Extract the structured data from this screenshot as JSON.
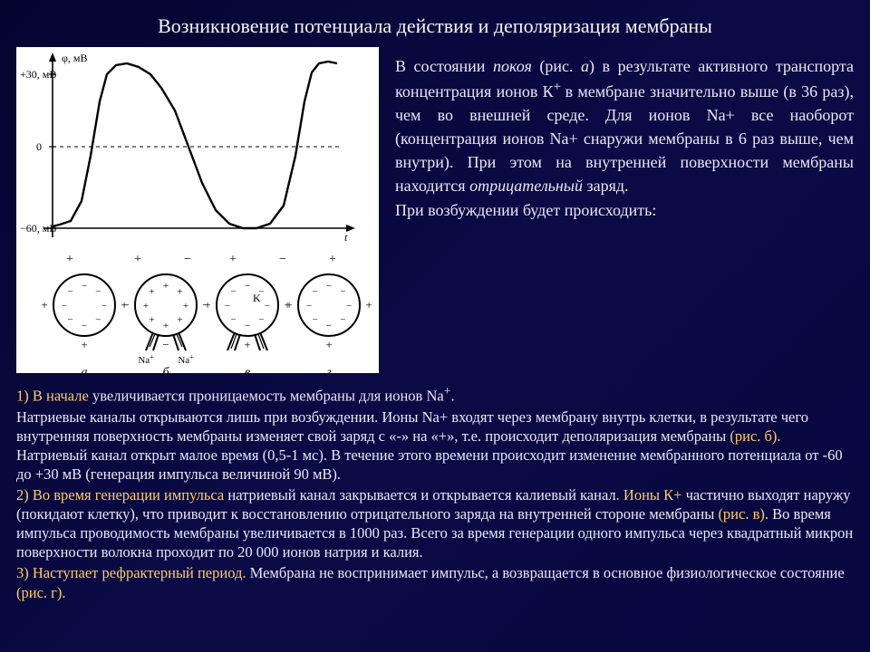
{
  "title": "Возникновение потенциала действия и деполяризация мембраны",
  "figure": {
    "chart": {
      "y_label_top": "+30, мВ",
      "y_label_mid": "0",
      "y_label_bot": "−60, мВ",
      "y_axis_title": "φ, мВ",
      "x_axis_label": "t",
      "background": "#ffffff",
      "stroke": "#000000",
      "line_width": 2,
      "curve": [
        [
          40,
          198
        ],
        [
          48,
          196
        ],
        [
          60,
          192
        ],
        [
          72,
          170
        ],
        [
          82,
          120
        ],
        [
          92,
          60
        ],
        [
          100,
          30
        ],
        [
          110,
          20
        ],
        [
          122,
          18
        ],
        [
          135,
          22
        ],
        [
          148,
          30
        ],
        [
          160,
          45
        ],
        [
          175,
          70
        ],
        [
          190,
          110
        ],
        [
          205,
          150
        ],
        [
          220,
          180
        ],
        [
          235,
          195
        ],
        [
          250,
          200
        ],
        [
          265,
          200
        ],
        [
          280,
          195
        ],
        [
          295,
          175
        ],
        [
          308,
          120
        ],
        [
          318,
          60
        ],
        [
          326,
          28
        ],
        [
          334,
          18
        ],
        [
          344,
          16
        ],
        [
          354,
          18
        ]
      ],
      "yticks": [
        30,
        0,
        -60
      ],
      "ylim": [
        -65,
        40
      ]
    },
    "membranes": {
      "labels": [
        "а",
        "б",
        "в",
        "г"
      ],
      "na_label": "Na",
      "k_label": "K",
      "circle_r": 34,
      "stroke": "#000000"
    }
  },
  "top_paragraph": {
    "p1a": "В состоянии ",
    "p1b_italic": "покоя",
    "p1c": " (рис.  ",
    "p1d_italic": "а",
    "p1e": ")  в результате активного транспорта концентрация ионов К",
    "p1f_sup": "+ ",
    "p1g": "в мембране значительно выше (в 36 раз), чем во внешней среде. Для ионов Na+  все наоборот (концентрация ионов Na+ снаружи мембраны в 6 раз выше, чем внутри). При этом на внутренней поверхности мембраны находится ",
    "p1h_italic": "отрицательный",
    "p1i": "  заряд."
  },
  "sub_heading": "При возбуждении будет происходить:",
  "body": {
    "s1_lead": "1) В начале ",
    "s1_a": "увеличивается проницаемость мембраны для ионов Na",
    "s1_sup": "+",
    "s1_b": ".",
    "s1_c": "Натриевые каналы открываются лишь при возбуждении. Ионы Na+ входят через мембрану внутрь клетки, в результате чего внутренняя поверхность мембраны изменяет свой заряд с «-» на «+», т.е. происходит деполяризация мембраны",
    "s1_d_orange": " (рис. б). ",
    "s1_e": "Натриевый канал открыт малое время (0,5-1 мс). В течение этого времени происходит изменение мембранного потенциала от -60 до +30 мВ (генерация импульса величиной 90 мВ).",
    "s2_lead": "2) Во время генерации импульса ",
    "s2_a": "натриевый канал закрывается и открывается калиевый канал",
    "s2_b_orange": ". Ионы К+ ",
    "s2_c": "частично выходят наружу (покидают клетку), что приводит к восстановлению отрицательного заряда на внутренней стороне мембраны",
    "s2_d_orange": "  (рис. в). ",
    "s2_e": "Во время импульса проводимость мембраны увеличивается в 1000 раз. Всего за время генерации одного импульса через квадратный микрон поверхности волокна проходит по 20 000 ионов натрия и калия.",
    "s3_lead": "3) Наступает рефрактерный период. ",
    "s3_a": "Мембрана не воспринимает импульс, а возвращается в основное физиологическое состояние",
    "s3_b_orange": " (рис. г)."
  }
}
